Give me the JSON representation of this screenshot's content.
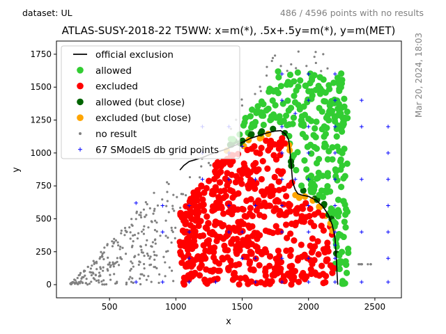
{
  "header": {
    "dataset": "dataset: UL",
    "no_results": "486 / 4596 points with no results",
    "timestamp": "Mar 20, 2024, 18:03"
  },
  "chart_data": {
    "type": "scatter",
    "title": "ATLAS-SUSY-2018-22 T5WW: x=m(*), .5x+.5y=m(*), y=m(MET)",
    "xlabel": "x",
    "ylabel": "y",
    "xlim": [
      100,
      2700
    ],
    "ylim": [
      -100,
      1850
    ],
    "xticks": [
      500,
      1000,
      1500,
      2000,
      2500
    ],
    "yticks": [
      0,
      250,
      500,
      750,
      1000,
      1250,
      1500,
      1750
    ],
    "grid": false,
    "legend_position": "top-left",
    "colors": {
      "allowed": "#32cd32",
      "excluded": "#ff0000",
      "allowed_close": "#006400",
      "excluded_close": "#ffa500",
      "no_result": "#808080",
      "grid_points": "#0000ff",
      "official": "#000000"
    },
    "legend": [
      {
        "key": "official",
        "label": "official exclusion",
        "marker": "line"
      },
      {
        "key": "allowed",
        "label": "allowed",
        "marker": "circle"
      },
      {
        "key": "excluded",
        "label": "excluded",
        "marker": "circle"
      },
      {
        "key": "allowed_close",
        "label": "allowed (but close)",
        "marker": "circle"
      },
      {
        "key": "excluded_close",
        "label": "excluded (but close)",
        "marker": "circle"
      },
      {
        "key": "no_result",
        "label": "no result",
        "marker": "dot"
      },
      {
        "key": "grid_points",
        "label": "67 SModelS db grid points",
        "marker": "plus"
      }
    ],
    "official_exclusion": {
      "x": [
        1030,
        1060,
        1100,
        1150,
        1200,
        1260,
        1320,
        1380,
        1440,
        1500,
        1560,
        1620,
        1680,
        1740,
        1790,
        1830,
        1850,
        1860,
        1870,
        1880,
        1900,
        1920,
        1950,
        2000,
        2060,
        2110,
        2150,
        2180,
        2200,
        2210,
        2215,
        2220
      ],
      "y": [
        870,
        905,
        935,
        950,
        965,
        990,
        1010,
        1030,
        1055,
        1080,
        1110,
        1130,
        1150,
        1165,
        1170,
        1140,
        1100,
        1020,
        900,
        780,
        720,
        690,
        680,
        670,
        640,
        590,
        530,
        450,
        350,
        200,
        80,
        0
      ]
    },
    "grid_points": {
      "x": [
        700,
        700,
        900,
        900,
        900,
        1100,
        1100,
        1100,
        1100,
        1200,
        1200,
        1200,
        1300,
        1400,
        1400,
        1400,
        1400,
        1400,
        1500,
        1500,
        1500,
        1600,
        1600,
        1600,
        1600,
        1800,
        1800,
        1800,
        1800,
        1800,
        1800,
        1800,
        1800,
        1800,
        1900,
        1900,
        2000,
        2000,
        2000,
        2000,
        2000,
        2000,
        2000,
        2000,
        2000,
        2200,
        2200,
        2200,
        2200,
        2200,
        2200,
        2200,
        2200,
        2200,
        2200,
        2400,
        2400,
        2400,
        2400,
        2400,
        2600,
        2600,
        2600,
        2600,
        2600,
        2600,
        2600
      ],
      "y": [
        20,
        620,
        20,
        400,
        600,
        20,
        200,
        400,
        600,
        800,
        1000,
        1200,
        20,
        400,
        600,
        800,
        1000,
        1200,
        200,
        400,
        1050,
        20,
        200,
        600,
        800,
        20,
        200,
        400,
        600,
        800,
        1000,
        1200,
        1400,
        1600,
        800,
        1300,
        20,
        200,
        400,
        600,
        800,
        1000,
        1200,
        1400,
        1600,
        20,
        200,
        400,
        600,
        800,
        1000,
        1200,
        1400,
        1600,
        300,
        20,
        400,
        800,
        1200,
        1400,
        20,
        200,
        400,
        600,
        800,
        1000,
        1200
      ]
    },
    "regions": {
      "no_result": {
        "count": 486,
        "note": "scattered along lower-left diagonal edge (x 200-1000) and sparsely above envelope"
      },
      "excluded": {
        "approx_x_range": [
          700,
          2200
        ],
        "approx_y_range": [
          20,
          1100
        ]
      },
      "allowed": {
        "approx_x_range": [
          1300,
          2300
        ],
        "approx_y_range": [
          0,
          1620
        ]
      },
      "allowed_close": {
        "near": "official exclusion contour"
      },
      "excluded_close": {
        "near": "official exclusion contour"
      }
    }
  }
}
